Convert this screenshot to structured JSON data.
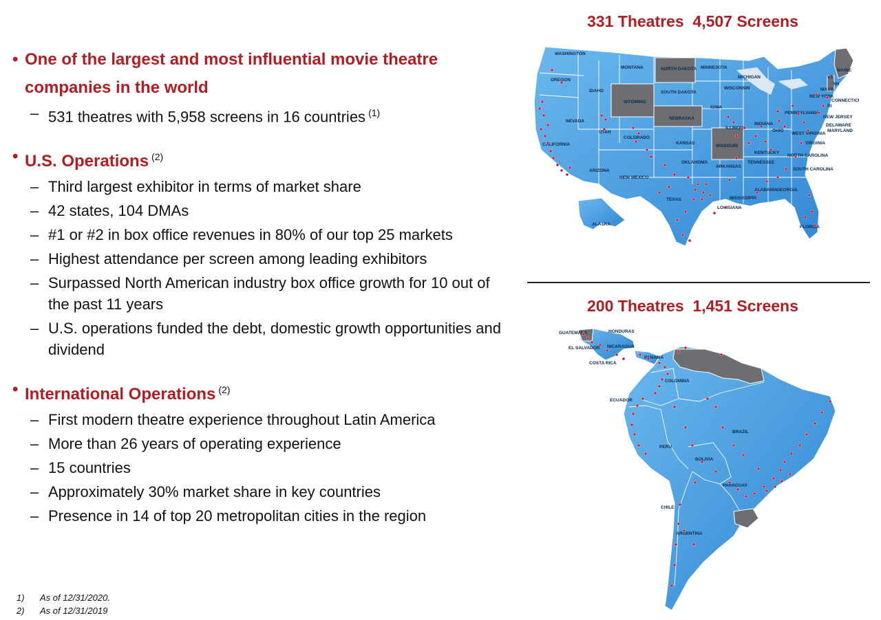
{
  "sections": [
    {
      "heading": "One of the largest and most influential movie theatre companies in the world",
      "heading_note": "",
      "items": [
        {
          "text": "531 theatres with 5,958 screens in 16 countries",
          "note": "(1)"
        }
      ]
    },
    {
      "heading": "U.S. Operations",
      "heading_note": "(2)",
      "items": [
        {
          "text": "Third largest exhibitor in terms of market share",
          "note": ""
        },
        {
          "text": "42 states, 104 DMAs",
          "note": ""
        },
        {
          "text": "#1 or #2 in box office revenues in 80% of our top 25 markets",
          "note": ""
        },
        {
          "text": "Highest attendance per screen among leading exhibitors",
          "note": ""
        },
        {
          "text": "Surpassed North American industry box office growth for 10 out of the past 11 years",
          "note": ""
        },
        {
          "text": "U.S. operations funded the debt, domestic growth opportunities and dividend",
          "note": ""
        }
      ]
    },
    {
      "heading": "International Operations",
      "heading_note": "(2)",
      "items": [
        {
          "text": "First modern theatre experience throughout Latin America",
          "note": ""
        },
        {
          "text": "More than 26 years of operating experience",
          "note": ""
        },
        {
          "text": "15 countries",
          "note": ""
        },
        {
          "text": "Approximately 30% market share in key countries",
          "note": ""
        },
        {
          "text": "Presence in 14 of top 20 metropolitan cities in the region",
          "note": ""
        }
      ]
    }
  ],
  "footnotes": [
    {
      "num": "1)",
      "text": "As of 12/31/2020."
    },
    {
      "num": "2)",
      "text": "As of 12/31/2019"
    }
  ],
  "us_map": {
    "title": "331 Theatres  4,507 Screens",
    "labels": [
      "WASHINGTON",
      "OREGON",
      "IDAHO",
      "MONTANA",
      "WYOMING",
      "NORTH DAKOTA",
      "SOUTH DAKOTA",
      "NEBRASKA",
      "MINNESOTA",
      "WISCONSIN",
      "MICHIGAN",
      "IOWA",
      "ILLINOIS",
      "INDIANA",
      "OHIO",
      "NEVADA",
      "UTAH",
      "COLORADO",
      "KANSAS",
      "MISSOURI",
      "CALIFORNIA",
      "ARIZONA",
      "NEW MEXICO",
      "OKLAHOMA",
      "ARKANSAS",
      "TEXAS",
      "LOUISIANA",
      "MISSISSIPPI",
      "ALABAMA",
      "GEORGIA",
      "TENNESSEE",
      "KENTUCKY",
      "WEST VIRGINIA",
      "VIRGINIA",
      "NORTH CAROLINA",
      "SOUTH CAROLINA",
      "FLORIDA",
      "PENNSYLVANIA",
      "NEW YORK",
      "NEW JERSEY",
      "DELAWARE",
      "MARYLAND",
      "CONNECTICUT",
      "RI",
      "MASS.",
      "VT",
      "NH",
      "MAINE",
      "ALASKA"
    ]
  },
  "latam_map": {
    "title": "200 Theatres  1,451 Screens",
    "labels": [
      "GUATEMALA",
      "HONDURAS",
      "EL SALVADOR",
      "NICARAGUA",
      "PANAMA",
      "COSTA RICA",
      "COLOMBIA",
      "ECUADOR",
      "PERU",
      "BRAZIL",
      "BOLIVIA",
      "PARAGUAY",
      "CHILE",
      "ARGENTINA"
    ]
  },
  "colors": {
    "accent": "#b01e23",
    "map_blue": "#4a9ee0",
    "map_grey": "#6d6e71",
    "dot": "#c8102e"
  }
}
